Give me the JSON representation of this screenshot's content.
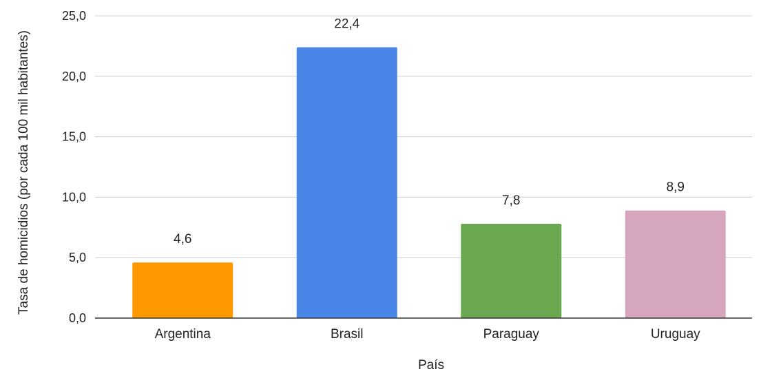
{
  "chart_data": {
    "type": "bar",
    "title": "",
    "xlabel": "País",
    "ylabel": "Tasa de homicidios (por cada 100 mil habitantes)",
    "categories": [
      "Argentina",
      "Brasil",
      "Paraguay",
      "Uruguay"
    ],
    "values": [
      4.6,
      22.4,
      7.8,
      8.9
    ],
    "value_labels": [
      "4,6",
      "22,4",
      "7,8",
      "8,9"
    ],
    "colors": [
      "#ff9900",
      "#4a86e8",
      "#6aa84f",
      "#d5a6bd"
    ],
    "ylim": [
      0,
      25
    ],
    "yticks": [
      0,
      5,
      10,
      15,
      20,
      25
    ],
    "ytick_labels": [
      "0,0",
      "5,0",
      "10,0",
      "15,0",
      "20,0",
      "25,0"
    ],
    "grid": true,
    "legend": "none"
  }
}
